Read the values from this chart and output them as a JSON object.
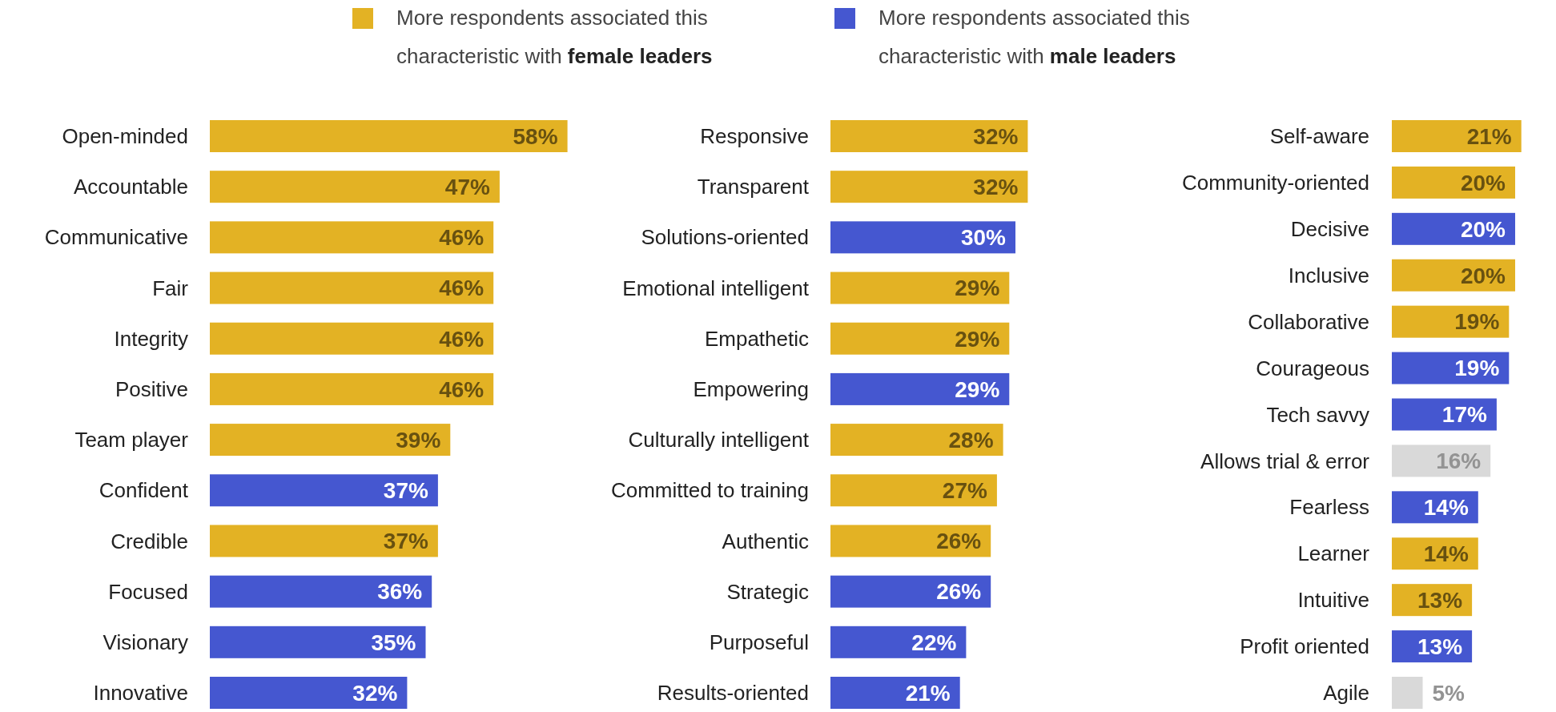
{
  "chart_data": [
    {
      "type": "bar",
      "orientation": "horizontal",
      "stacked": true,
      "legend": "top",
      "categories": [
        "Open-minded",
        "Accountable",
        "Communicative",
        "Fair",
        "Integrity",
        "Positive",
        "Team player",
        "Confident",
        "Credible",
        "Focused",
        "Visionary",
        "Innovative"
      ],
      "series": [
        {
          "name": "More respondents associated this characteristic with female leaders",
          "color": "#e3b224",
          "values": [
            58,
            47,
            46,
            46,
            46,
            46,
            39,
            null,
            37,
            null,
            null,
            null
          ],
          "value_labels": [
            "58%",
            "47%",
            "46%",
            "46%",
            "46%",
            "46%",
            "39%",
            null,
            "37%",
            null,
            null,
            null
          ]
        },
        {
          "name": "More respondents associated this characteristic with male leaders",
          "color": "#4557d0",
          "values": [
            null,
            null,
            null,
            null,
            null,
            null,
            null,
            37,
            null,
            36,
            35,
            32
          ],
          "value_labels": [
            null,
            null,
            null,
            null,
            null,
            null,
            null,
            "37%",
            null,
            "36%",
            "35%",
            "32%"
          ]
        }
      ]
    },
    {
      "type": "bar",
      "orientation": "horizontal",
      "stacked": true,
      "categories": [
        "Responsive",
        "Transparent",
        "Solutions-oriented",
        "Emotional intelligent",
        "Empathetic",
        "Empowering",
        "Culturally intelligent",
        "Committed to training",
        "Authentic",
        "Strategic",
        "Purposeful",
        "Results-oriented"
      ],
      "series": [
        {
          "color": "#e3b224",
          "values": [
            32,
            32,
            null,
            29,
            29,
            null,
            28,
            27,
            26,
            null,
            null,
            null
          ],
          "value_labels": [
            "32%",
            "32%",
            null,
            "29%",
            "29%",
            null,
            "28%",
            "27%",
            "26%",
            null,
            null,
            null
          ]
        },
        {
          "color": "#4557d0",
          "values": [
            null,
            null,
            30,
            null,
            null,
            29,
            null,
            null,
            null,
            26,
            22,
            21
          ],
          "value_labels": [
            null,
            null,
            "30%",
            null,
            null,
            "29%",
            null,
            null,
            null,
            "26%",
            "22%",
            "21%"
          ]
        }
      ]
    },
    {
      "type": "bar",
      "orientation": "horizontal",
      "stacked": true,
      "categories": [
        "Self-aware",
        "Community-oriented",
        "Decisive",
        "Inclusive",
        "Collaborative",
        "Courageous",
        "Tech savvy",
        "Allows trial & error",
        "Fearless",
        "Learner",
        "Intuitive",
        "Profit oriented",
        "Agile"
      ],
      "series": [
        {
          "color": "#e3b224",
          "values": [
            21,
            20,
            null,
            20,
            19,
            null,
            null,
            null,
            null,
            14,
            13,
            null,
            null
          ],
          "value_labels": [
            "21%",
            "20%",
            null,
            "20%",
            "19%",
            null,
            null,
            null,
            null,
            "14%",
            "13%",
            null,
            null
          ]
        },
        {
          "color": "#4557d0",
          "values": [
            null,
            null,
            20,
            null,
            null,
            19,
            17,
            null,
            14,
            null,
            null,
            13,
            null
          ],
          "value_labels": [
            null,
            null,
            "20%",
            null,
            null,
            "19%",
            "17%",
            null,
            "14%",
            null,
            null,
            "13%",
            null
          ]
        },
        {
          "color": "#d9d9d9",
          "values": [
            null,
            null,
            null,
            null,
            null,
            null,
            null,
            16,
            null,
            null,
            null,
            null,
            5
          ],
          "value_labels": [
            null,
            null,
            null,
            null,
            null,
            null,
            null,
            "16%",
            null,
            null,
            null,
            null,
            "5%"
          ]
        }
      ]
    }
  ]
}
